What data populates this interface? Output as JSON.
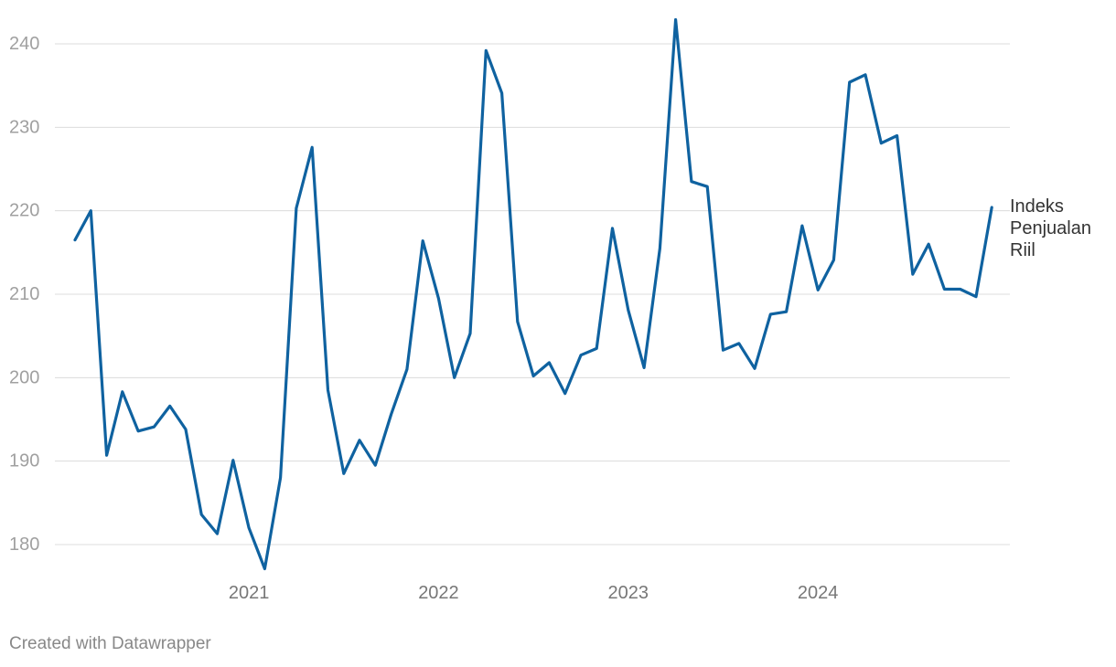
{
  "chart_data": {
    "type": "line",
    "categories": [
      null,
      null,
      null,
      null,
      null,
      null,
      null,
      null,
      null,
      null,
      null,
      "2021",
      null,
      null,
      null,
      null,
      null,
      null,
      null,
      null,
      null,
      null,
      null,
      "2022",
      null,
      null,
      null,
      null,
      null,
      null,
      null,
      null,
      null,
      null,
      null,
      "2023",
      null,
      null,
      null,
      null,
      null,
      null,
      null,
      null,
      null,
      null,
      null,
      "2024",
      null,
      null,
      null,
      null,
      null,
      null,
      null,
      null,
      null,
      null,
      null
    ],
    "series": [
      {
        "name": "Indeks Penjualan Riil",
        "color": "#0f62a0",
        "values": [
          216.5,
          220,
          190.7,
          198.3,
          193.6,
          194.1,
          196.6,
          193.8,
          183.6,
          181.3,
          190.1,
          182,
          177.1,
          188,
          220.3,
          227.6,
          198.5,
          188.5,
          192.5,
          189.5,
          195.6,
          201,
          216.4,
          209.5,
          200,
          205.3,
          239.2,
          234.1,
          206.7,
          200.2,
          201.8,
          198.1,
          202.7,
          203.5,
          217.9,
          208.1,
          201.2,
          215.5,
          242.9,
          223.5,
          222.9,
          203.3,
          204.1,
          201.1,
          207.6,
          207.9,
          218.2,
          210.5,
          214.1,
          235.4,
          236.3,
          228.1,
          229,
          212.4,
          216,
          210.6,
          210.6,
          209.7,
          220.4
        ]
      }
    ],
    "ylim": [
      176,
      244
    ],
    "yticks": [
      180,
      190,
      200,
      210,
      220,
      230,
      240
    ],
    "grid": true,
    "footer": "Created with Datawrapper"
  }
}
